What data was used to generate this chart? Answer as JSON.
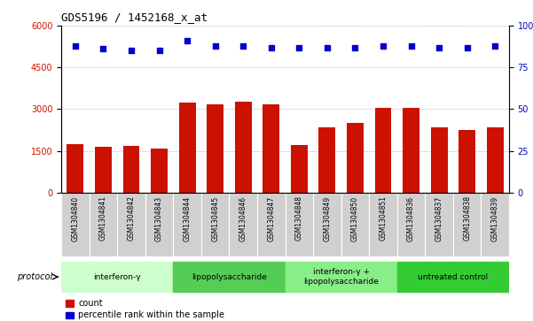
{
  "title": "GDS5196 / 1452168_x_at",
  "samples": [
    "GSM1304840",
    "GSM1304841",
    "GSM1304842",
    "GSM1304843",
    "GSM1304844",
    "GSM1304845",
    "GSM1304846",
    "GSM1304847",
    "GSM1304848",
    "GSM1304849",
    "GSM1304850",
    "GSM1304851",
    "GSM1304836",
    "GSM1304837",
    "GSM1304838",
    "GSM1304839"
  ],
  "counts": [
    1750,
    1650,
    1680,
    1580,
    3250,
    3180,
    3280,
    3180,
    1700,
    2350,
    2500,
    3050,
    3050,
    2350,
    2250,
    2350
  ],
  "percentile_ranks_pct": [
    88,
    86,
    85,
    85,
    91,
    88,
    88,
    87,
    87,
    87,
    87,
    88,
    88,
    87,
    87,
    88
  ],
  "groups": [
    {
      "label": "interferon-γ",
      "start": 0,
      "end": 4,
      "color": "#ccffcc"
    },
    {
      "label": "lipopolysaccharide",
      "start": 4,
      "end": 8,
      "color": "#55cc55"
    },
    {
      "label": "interferon-γ +\nlipopolysaccharide",
      "start": 8,
      "end": 12,
      "color": "#88ee88"
    },
    {
      "label": "untreated control",
      "start": 12,
      "end": 16,
      "color": "#33cc33"
    }
  ],
  "bar_color": "#cc1100",
  "dot_color": "#0000cc",
  "left_yticks": [
    0,
    1500,
    3000,
    4500,
    6000
  ],
  "right_yticks": [
    0,
    25,
    50,
    75,
    100
  ],
  "ylim_left": [
    0,
    6000
  ],
  "ylim_right": [
    0,
    100
  ],
  "tick_box_color": "#d0d0d0",
  "protocol_label": "protocol",
  "legend_count": "count",
  "legend_percentile": "percentile rank within the sample",
  "spine_color": "#000000"
}
